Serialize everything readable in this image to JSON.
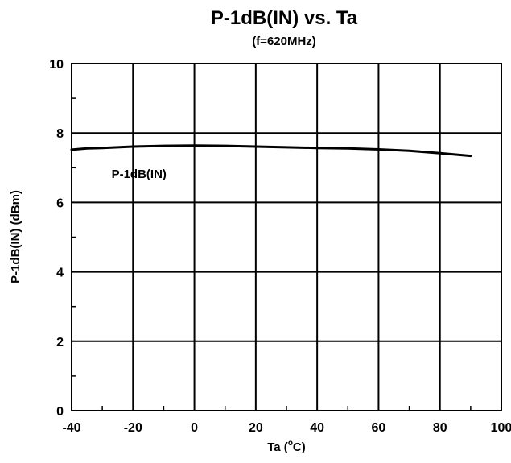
{
  "chart_data": {
    "type": "line",
    "title": "P-1dB(IN) vs. Ta",
    "subtitle": "(f=620MHz)",
    "xlabel": "Ta (",
    "xlabel_unit_super": "o",
    "xlabel_unit": "C)",
    "ylabel": "P-1dB(IN) (dBm)",
    "xlim": [
      -40,
      100
    ],
    "ylim": [
      0,
      10
    ],
    "x_ticks": [
      -40,
      -20,
      0,
      20,
      40,
      60,
      80,
      100
    ],
    "x_tick_labels": [
      "-40",
      "-20",
      "0",
      "20",
      "40",
      "60",
      "80",
      "100"
    ],
    "y_ticks": [
      0,
      2,
      4,
      6,
      8,
      10
    ],
    "y_tick_labels": [
      "0",
      "2",
      "4",
      "6",
      "8",
      "10"
    ],
    "x_minor_step": 10,
    "y_minor_step": 1,
    "grid": true,
    "series": [
      {
        "name": "P-1dB(IN)",
        "color": "#000000",
        "x": [
          -40,
          -35,
          -30,
          -20,
          -10,
          0,
          10,
          20,
          30,
          40,
          50,
          60,
          70,
          80,
          90
        ],
        "y": [
          7.52,
          7.56,
          7.57,
          7.61,
          7.63,
          7.64,
          7.63,
          7.61,
          7.59,
          7.57,
          7.56,
          7.53,
          7.49,
          7.42,
          7.34
        ]
      }
    ],
    "annotations": [
      {
        "text": "P-1dB(IN)",
        "x": -27,
        "y": 6.7
      }
    ]
  }
}
